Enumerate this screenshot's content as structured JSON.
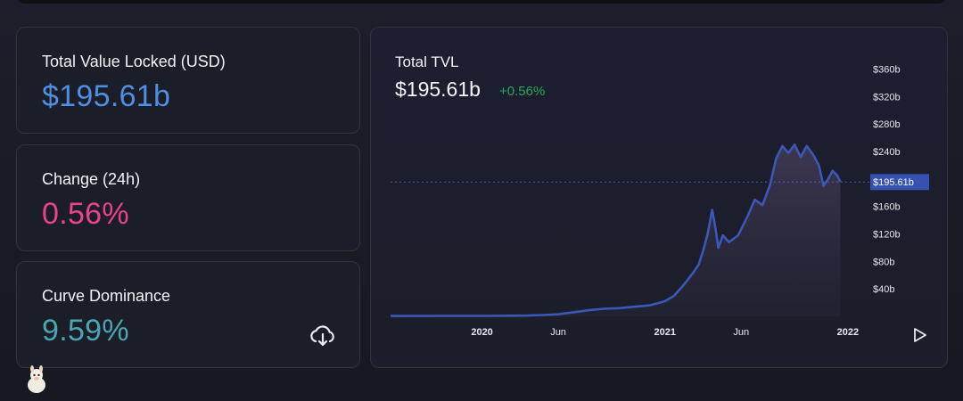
{
  "cards": {
    "tvl": {
      "label": "Total Value Locked (USD)",
      "value": "$195.61b",
      "color": "#4f8ee0"
    },
    "change": {
      "label": "Change (24h)",
      "value": "0.56%",
      "color": "#e9438f"
    },
    "dominance": {
      "label": "Curve Dominance",
      "value": "9.59%",
      "color": "#4aa6b0",
      "action_icon": "cloud-download-icon"
    }
  },
  "chart": {
    "title": "Total TVL",
    "value": "$195.61b",
    "change": "+0.56%",
    "change_color": "#27a85a",
    "line_color": "#3b57b8",
    "play_icon": "play-icon"
  },
  "chart_data": {
    "type": "area",
    "title": "Total TVL",
    "current_value_label": "$195.61b",
    "current_value": 195.61,
    "ylabel": "",
    "xlabel": "",
    "ylim": [
      0,
      375
    ],
    "y_ticks": [
      "$360b",
      "$320b",
      "$280b",
      "$240b",
      "$160b",
      "$120b",
      "$80b",
      "$40b"
    ],
    "y_tick_values": [
      360,
      320,
      280,
      240,
      160,
      120,
      80,
      40
    ],
    "x_ticks": [
      "2020",
      "Jun",
      "2021",
      "Jun",
      "2022"
    ],
    "x_tick_bold": [
      true,
      false,
      true,
      false,
      true
    ],
    "x_range": [
      "2019-07",
      "2022-02"
    ],
    "x_tick_positions": [
      6,
      11,
      18,
      23,
      30
    ],
    "x_months_span": 31,
    "grid": false,
    "series": [
      {
        "values": [
          [
            0,
            0.5
          ],
          [
            3,
            0.6
          ],
          [
            6,
            0.7
          ],
          [
            8,
            0.9
          ],
          [
            9,
            1.2
          ],
          [
            10,
            2
          ],
          [
            11,
            3
          ],
          [
            12,
            6
          ],
          [
            13,
            9
          ],
          [
            14,
            11
          ],
          [
            15,
            12
          ],
          [
            16,
            14
          ],
          [
            17,
            16
          ],
          [
            18,
            22
          ],
          [
            18.6,
            30
          ],
          [
            19.2,
            45
          ],
          [
            19.8,
            62
          ],
          [
            20.2,
            75
          ],
          [
            20.5,
            95
          ],
          [
            20.8,
            120
          ],
          [
            21.1,
            155
          ],
          [
            21.3,
            130
          ],
          [
            21.5,
            100
          ],
          [
            21.8,
            118
          ],
          [
            22.2,
            108
          ],
          [
            22.8,
            118
          ],
          [
            23.4,
            145
          ],
          [
            23.9,
            170
          ],
          [
            24.4,
            162
          ],
          [
            24.9,
            192
          ],
          [
            25.3,
            230
          ],
          [
            25.7,
            248
          ],
          [
            26.1,
            238
          ],
          [
            26.5,
            250
          ],
          [
            26.9,
            232
          ],
          [
            27.3,
            248
          ],
          [
            27.7,
            236
          ],
          [
            28.1,
            220
          ],
          [
            28.4,
            190
          ],
          [
            28.7,
            200
          ],
          [
            29.0,
            212
          ],
          [
            29.3,
            205
          ],
          [
            29.5,
            196
          ]
        ]
      }
    ]
  }
}
